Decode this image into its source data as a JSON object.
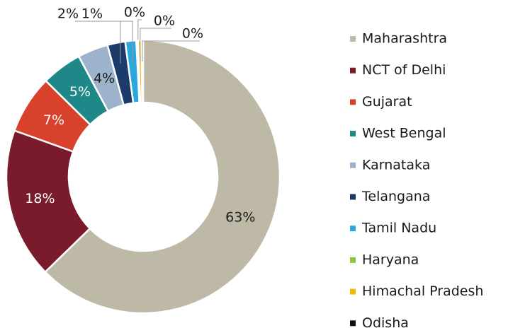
{
  "chart_data": {
    "type": "donut",
    "categories": [
      "Maharashtra",
      "NCT of Delhi",
      "Gujarat",
      "West Bengal",
      "Karnataka",
      "Telangana",
      "Tamil Nadu",
      "Haryana",
      "Himachal Pradesh",
      "Odisha"
    ],
    "values": [
      62.7,
      17.8,
      6.9,
      4.8,
      3.6,
      2.1,
      1.3,
      0.2,
      0.4,
      0.2
    ],
    "value_labels": [
      "63%",
      "18%",
      "7%",
      "5%",
      "4%",
      "2%",
      "1%",
      "0%",
      "0%",
      "0%"
    ],
    "colors": [
      "#bdb9a6",
      "#7a1b2b",
      "#d8412c",
      "#1e8889",
      "#9db3cb",
      "#1c3a6a",
      "#2aa7df",
      "#8dc63f",
      "#f4b800",
      "#111111"
    ],
    "legend": "right"
  }
}
